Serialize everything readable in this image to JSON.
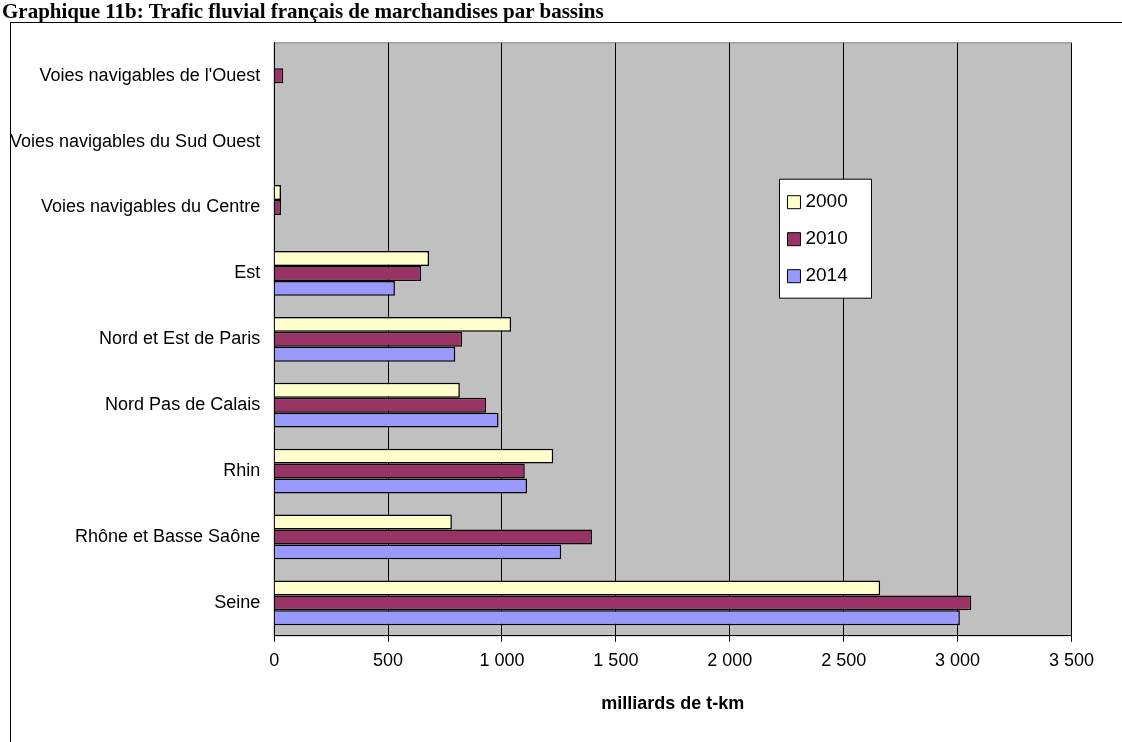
{
  "chart_data": {
    "type": "bar",
    "orientation": "horizontal",
    "title": "Graphique 11b: Trafic fluvial français de marchandises par bassins",
    "xlabel": "milliards de t-km",
    "categories": [
      "Voies navigables de l'Ouest",
      "Voies navigables du Sud Ouest",
      "Voies navigables du Centre",
      "Est",
      "Nord et Est de Paris",
      "Nord Pas de Calais",
      "Rhin",
      "Rhône et Basse Saône",
      "Seine"
    ],
    "series": [
      {
        "name": "2000",
        "color": "#ffffcc",
        "values": [
          null,
          null,
          30,
          680,
          1040,
          815,
          1225,
          780,
          2660
        ]
      },
      {
        "name": "2010",
        "color": "#993366",
        "values": [
          40,
          null,
          30,
          645,
          825,
          930,
          1100,
          1395,
          3060
        ]
      },
      {
        "name": "2014",
        "color": "#9999ff",
        "values": [
          null,
          null,
          null,
          530,
          795,
          985,
          1110,
          1260,
          3010
        ]
      }
    ],
    "xlim": [
      0,
      3500
    ],
    "xticks": [
      {
        "value": 0,
        "label": "0"
      },
      {
        "value": 500,
        "label": "500"
      },
      {
        "value": 1000,
        "label": "1 000"
      },
      {
        "value": 1500,
        "label": "1 500"
      },
      {
        "value": 2000,
        "label": "2 000"
      },
      {
        "value": 2500,
        "label": "2 500"
      },
      {
        "value": 3000,
        "label": "3 000"
      },
      {
        "value": 3500,
        "label": "3 500"
      }
    ],
    "grid": "x",
    "legend": "right"
  }
}
